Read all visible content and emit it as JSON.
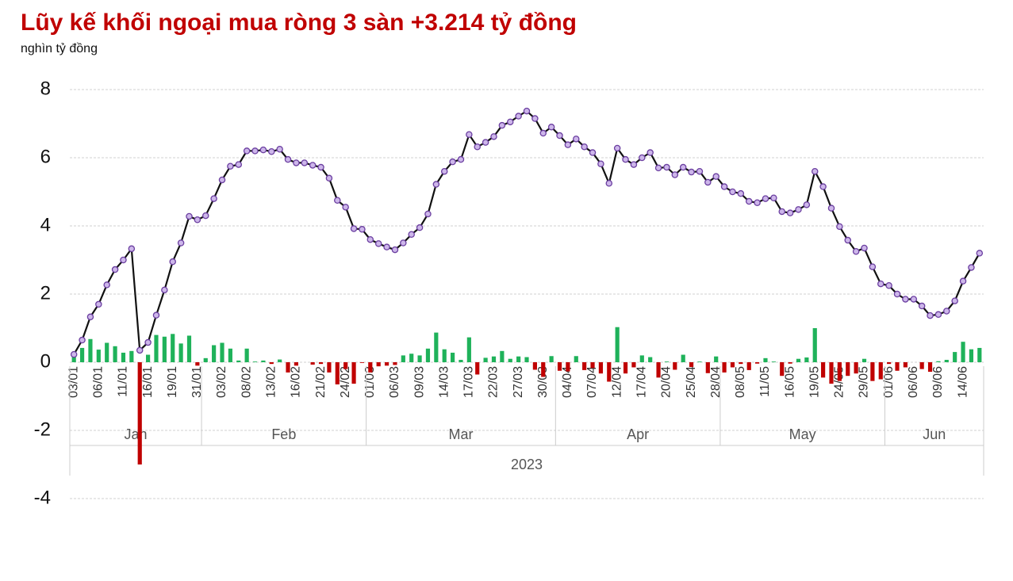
{
  "chart_data": {
    "type": "combo",
    "title": "Lũy kế khối ngoại mua ròng 3 sàn +3.214  tỷ đồng",
    "subtitle": "nghìn tỷ đồng",
    "categories": [
      "03/01",
      null,
      null,
      "06/01",
      null,
      null,
      "11/01",
      null,
      null,
      "16/01",
      null,
      null,
      "19/01",
      null,
      null,
      "31/01",
      null,
      null,
      "03/02",
      null,
      null,
      "08/02",
      null,
      null,
      "13/02",
      null,
      null,
      "16/02",
      null,
      null,
      "21/02",
      null,
      null,
      "24/02",
      null,
      null,
      "01/03",
      null,
      null,
      "06/03",
      null,
      null,
      "09/03",
      null,
      null,
      "14/03",
      null,
      null,
      "17/03",
      null,
      null,
      "22/03",
      null,
      null,
      "27/03",
      null,
      null,
      "30/03",
      null,
      null,
      "04/04",
      null,
      null,
      "07/04",
      null,
      null,
      "12/04",
      null,
      null,
      "17/04",
      null,
      null,
      "20/04",
      null,
      null,
      "25/04",
      null,
      null,
      "28/04",
      null,
      null,
      "08/05",
      null,
      null,
      "11/05",
      null,
      null,
      "16/05",
      null,
      null,
      "19/05",
      null,
      null,
      "24/05",
      null,
      null,
      "29/05",
      null,
      null,
      "01/06",
      null,
      null,
      "06/06",
      null,
      null,
      "09/06",
      null,
      null,
      "14/06",
      null,
      null
    ],
    "groups": [
      {
        "label": "Jan",
        "size": 16
      },
      {
        "label": "Feb",
        "size": 20
      },
      {
        "label": "Mar",
        "size": 23
      },
      {
        "label": "Apr",
        "size": 20
      },
      {
        "label": "May",
        "size": 20
      },
      {
        "label": "Jun",
        "size": 12
      }
    ],
    "group_year": "2023",
    "series": [
      {
        "type": "bar",
        "color_positive": "#1fb25a",
        "color_negative": "#c00000",
        "values": [
          0.2,
          0.42,
          0.68,
          0.37,
          0.57,
          0.47,
          0.28,
          0.33,
          -3.0,
          0.22,
          0.8,
          0.75,
          0.83,
          0.55,
          0.78,
          -0.1,
          0.12,
          0.5,
          0.57,
          0.4,
          0.05,
          0.4,
          0.02,
          0.05,
          -0.05,
          0.08,
          -0.3,
          -0.1,
          0.0,
          -0.07,
          -0.05,
          -0.3,
          -0.65,
          -0.2,
          -0.63,
          -0.02,
          -0.3,
          -0.12,
          -0.1,
          -0.08,
          0.2,
          0.25,
          0.2,
          0.4,
          0.87,
          0.38,
          0.28,
          0.07,
          0.73,
          -0.36,
          0.13,
          0.17,
          0.33,
          0.1,
          0.17,
          0.15,
          -0.22,
          -0.43,
          0.18,
          -0.25,
          -0.27,
          0.18,
          -0.23,
          -0.17,
          -0.33,
          -0.57,
          1.03,
          -0.33,
          -0.15,
          0.2,
          0.15,
          -0.45,
          0.02,
          -0.22,
          0.22,
          -0.14,
          0.02,
          -0.32,
          0.17,
          -0.3,
          -0.15,
          -0.05,
          -0.23,
          -0.04,
          0.12,
          0.02,
          -0.4,
          -0.04,
          0.1,
          0.14,
          1.0,
          -0.45,
          -0.63,
          -0.55,
          -0.4,
          -0.33,
          0.1,
          -0.55,
          -0.5,
          -0.05,
          -0.25,
          -0.15,
          0.0,
          -0.2,
          -0.28,
          0.03,
          0.07,
          0.3,
          0.6,
          0.38,
          0.42
        ]
      },
      {
        "type": "line",
        "color": "#111111",
        "marker_fill": "#cdb6ea",
        "marker_stroke": "#6b3fa0",
        "values": [
          0.23,
          0.65,
          1.33,
          1.7,
          2.27,
          2.72,
          3.0,
          3.33,
          0.35,
          0.58,
          1.38,
          2.12,
          2.95,
          3.5,
          4.28,
          4.18,
          4.3,
          4.8,
          5.35,
          5.75,
          5.8,
          6.2,
          6.2,
          6.23,
          6.18,
          6.25,
          5.95,
          5.85,
          5.85,
          5.78,
          5.72,
          5.4,
          4.75,
          4.55,
          3.92,
          3.9,
          3.6,
          3.48,
          3.38,
          3.3,
          3.5,
          3.75,
          3.95,
          4.35,
          5.22,
          5.6,
          5.88,
          5.95,
          6.68,
          6.32,
          6.45,
          6.62,
          6.95,
          7.05,
          7.22,
          7.37,
          7.15,
          6.72,
          6.9,
          6.65,
          6.38,
          6.55,
          6.32,
          6.15,
          5.82,
          5.25,
          6.28,
          5.95,
          5.8,
          6.0,
          6.15,
          5.7,
          5.72,
          5.5,
          5.72,
          5.58,
          5.6,
          5.28,
          5.45,
          5.15,
          5.0,
          4.95,
          4.72,
          4.68,
          4.8,
          4.82,
          4.42,
          4.38,
          4.48,
          4.62,
          5.6,
          5.15,
          4.52,
          3.98,
          3.58,
          3.25,
          3.35,
          2.8,
          2.3,
          2.25,
          2.0,
          1.85,
          1.85,
          1.65,
          1.37,
          1.4,
          1.5,
          1.8,
          2.38,
          2.78,
          3.2
        ]
      }
    ],
    "ylim": [
      -4,
      8
    ],
    "yticks": [
      8,
      6,
      4,
      2,
      0,
      -2,
      -4
    ],
    "grid": true
  }
}
